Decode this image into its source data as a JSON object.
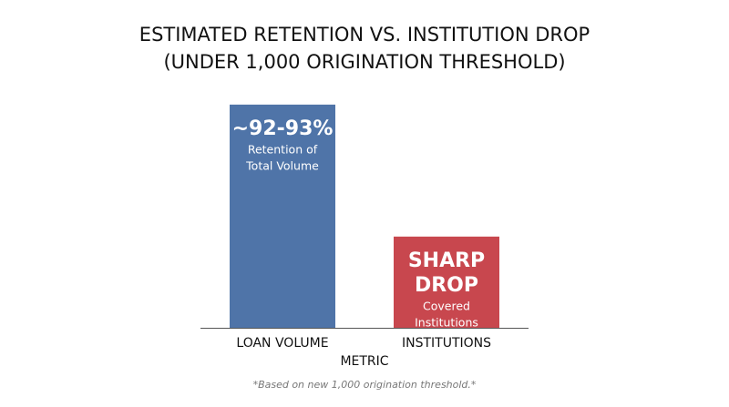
{
  "chart_data": {
    "type": "bar",
    "title": [
      "ESTIMATED RETENTION VS. INSTITUTION DROP",
      "(UNDER 1,000 ORIGINATION THRESHOLD)"
    ],
    "x_label": "METRIC",
    "categories": [
      "LOAN VOLUME",
      "INSTITUTIONS"
    ],
    "values": [
      92.5,
      37.8
    ],
    "colors": [
      "#4f74a8",
      "#c8474e"
    ],
    "ylim": [
      0,
      100
    ],
    "bar_annotations": [
      {
        "headline": [
          "~92-93%"
        ],
        "detail": [
          "Retention of",
          "Total Volume"
        ]
      },
      {
        "headline": [
          "SHARP",
          "DROP"
        ],
        "detail": [
          "Covered",
          "Institutions"
        ]
      }
    ],
    "footnote": "*Based on new 1,000 origination threshold.*"
  }
}
